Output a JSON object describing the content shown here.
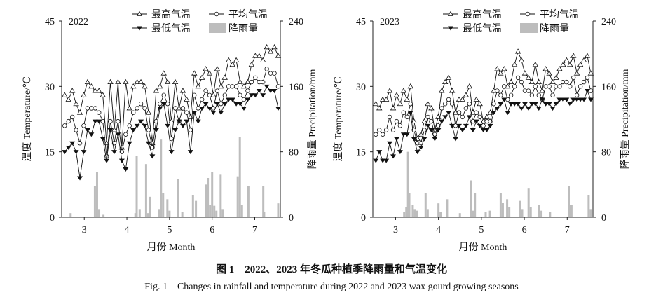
{
  "caption": {
    "cn": "图 1　2022、2023 年冬瓜种植季降雨量和气温变化",
    "en": "Fig. 1　Changes in rainfall and temperature during 2022 and 2023 wax gourd growing seasons"
  },
  "chart_data": [
    {
      "type": "line+bar",
      "title": "2022",
      "xlabel": "月份 Month",
      "ylabel": "温度 Temperature/℃",
      "y2label": "降雨量 Precipitation/mm",
      "xlim": [
        2.47,
        7.6
      ],
      "ylim": [
        0,
        45
      ],
      "y2lim": [
        0,
        240
      ],
      "xticks": [
        3,
        4,
        5,
        6,
        7
      ],
      "yticks": [
        0,
        15,
        30,
        45
      ],
      "y2ticks": [
        0,
        80,
        160,
        240
      ],
      "legend": [
        "最高气温",
        "平均气温",
        "最低气温",
        "降雨量"
      ],
      "legend_position": "top",
      "series": [
        {
          "name": "最高气温",
          "values": [
            28,
            27,
            29,
            26,
            24,
            28,
            31,
            30,
            29,
            29,
            28,
            17,
            31,
            20,
            31,
            16,
            31,
            25,
            30,
            31,
            31,
            30,
            24,
            17,
            29,
            30,
            33,
            31,
            22,
            31,
            25,
            29,
            27,
            23,
            33,
            30,
            32,
            34,
            33,
            28,
            34,
            30,
            32,
            36,
            35,
            36,
            31,
            30,
            31,
            35,
            37,
            37,
            36,
            39,
            38,
            39,
            37
          ]
        },
        {
          "name": "平均气温",
          "values": [
            21,
            22,
            23,
            20,
            17,
            21,
            25,
            25,
            25,
            24,
            22,
            14,
            22,
            17,
            22,
            15,
            19,
            21,
            24,
            25,
            26,
            25,
            20,
            16,
            22,
            26,
            28,
            26,
            18,
            25,
            22,
            25,
            24,
            20,
            28,
            25,
            27,
            29,
            28,
            25,
            29,
            26,
            28,
            30,
            30,
            30,
            28,
            27,
            29,
            31,
            32,
            31,
            31,
            34,
            33,
            33,
            30
          ]
        },
        {
          "name": "最低气温",
          "values": [
            15,
            16,
            17,
            15,
            9,
            15,
            20,
            19,
            22,
            22,
            18,
            13,
            20,
            15,
            19,
            13,
            11,
            17,
            20,
            21,
            22,
            21,
            17,
            14,
            20,
            25,
            26,
            21,
            15,
            20,
            22,
            21,
            22,
            15,
            24,
            22,
            25,
            26,
            25,
            24,
            26,
            24,
            26,
            27,
            27,
            26,
            26,
            25,
            27,
            28,
            28,
            29,
            28,
            30,
            29,
            29,
            25
          ]
        },
        {
          "name": "降雨量",
          "x": [
            2.68,
            3.25,
            3.3,
            3.35,
            3.45,
            4.2,
            4.23,
            4.3,
            4.45,
            4.5,
            4.55,
            4.75,
            4.8,
            4.85,
            4.95,
            5.0,
            5.2,
            5.3,
            5.55,
            5.62,
            5.85,
            5.9,
            5.95,
            6.0,
            6.05,
            6.1,
            6.2,
            6.25,
            6.6,
            6.65,
            6.7,
            6.85,
            7.2,
            7.22,
            7.55
          ],
          "values": [
            5,
            38,
            55,
            10,
            3,
            5,
            75,
            10,
            65,
            5,
            25,
            10,
            95,
            30,
            22,
            8,
            47,
            6,
            27,
            20,
            40,
            48,
            15,
            55,
            14,
            8,
            52,
            10,
            50,
            98,
            15,
            38,
            38,
            6,
            17
          ]
        }
      ]
    },
    {
      "type": "line+bar",
      "title": "2023",
      "xlabel": "月份 Month",
      "ylabel": "温度 Temperature/℃",
      "y2label": "降雨量 Precipitation/mm",
      "xlim": [
        2.47,
        7.6
      ],
      "ylim": [
        0,
        45
      ],
      "y2lim": [
        0,
        240
      ],
      "xticks": [
        3,
        4,
        5,
        6,
        7
      ],
      "yticks": [
        0,
        15,
        30,
        45
      ],
      "y2ticks": [
        0,
        80,
        160,
        240
      ],
      "legend": [
        "最高气温",
        "平均气温",
        "最低气温",
        "降雨量"
      ],
      "legend_position": "top",
      "series": [
        {
          "name": "最高气温",
          "values": [
            26,
            25,
            27,
            27,
            29,
            25,
            28,
            26,
            29,
            27,
            30,
            22,
            18,
            19,
            22,
            26,
            25,
            20,
            23,
            29,
            31,
            32,
            29,
            24,
            27,
            27,
            28,
            30,
            24,
            27,
            26,
            22,
            23,
            24,
            29,
            34,
            33,
            34,
            30,
            31,
            35,
            38,
            36,
            33,
            32,
            31,
            35,
            31,
            29,
            34,
            33,
            31,
            32,
            34,
            35,
            36,
            35,
            37,
            33,
            35,
            36,
            37,
            33
          ]
        },
        {
          "name": "平均气温",
          "values": [
            19,
            20,
            19,
            20,
            23,
            20,
            22,
            21,
            24,
            23,
            26,
            20,
            17,
            17,
            20,
            23,
            22,
            19,
            21,
            25,
            26,
            27,
            26,
            21,
            24,
            23,
            25,
            26,
            22,
            24,
            23,
            21,
            22,
            22,
            26,
            29,
            28,
            30,
            27,
            28,
            30,
            32,
            31,
            29,
            29,
            28,
            30,
            28,
            27,
            30,
            30,
            28,
            30,
            30,
            31,
            31,
            30,
            32,
            28,
            30,
            31,
            32,
            29
          ]
        },
        {
          "name": "最低气温",
          "values": [
            13,
            15,
            13,
            13,
            17,
            14,
            18,
            15,
            19,
            19,
            24,
            18,
            15,
            16,
            18,
            21,
            20,
            18,
            20,
            22,
            23,
            24,
            21,
            18,
            21,
            20,
            21,
            23,
            20,
            22,
            21,
            20,
            20,
            21,
            24,
            25,
            26,
            27,
            24,
            26,
            26,
            26,
            25,
            26,
            25,
            26,
            26,
            25,
            27,
            26,
            26,
            25,
            26,
            27,
            27,
            27,
            26,
            27,
            27,
            27,
            27,
            29,
            27
          ]
        },
        {
          "name": "降雨量",
          "x": [
            3.2,
            3.25,
            3.29,
            3.32,
            3.4,
            3.45,
            3.5,
            3.7,
            3.75,
            4.0,
            4.05,
            4.2,
            4.5,
            4.75,
            4.8,
            4.85,
            5.1,
            5.2,
            5.45,
            5.5,
            5.6,
            5.65,
            5.9,
            5.95,
            6.1,
            6.15,
            6.35,
            6.4,
            6.6,
            7.05,
            7.1,
            7.5,
            7.55
          ],
          "values": [
            6,
            12,
            80,
            30,
            15,
            10,
            8,
            30,
            10,
            17,
            6,
            22,
            5,
            45,
            8,
            30,
            6,
            8,
            30,
            18,
            22,
            12,
            20,
            10,
            35,
            12,
            15,
            8,
            6,
            38,
            15,
            27,
            10
          ]
        }
      ]
    }
  ]
}
